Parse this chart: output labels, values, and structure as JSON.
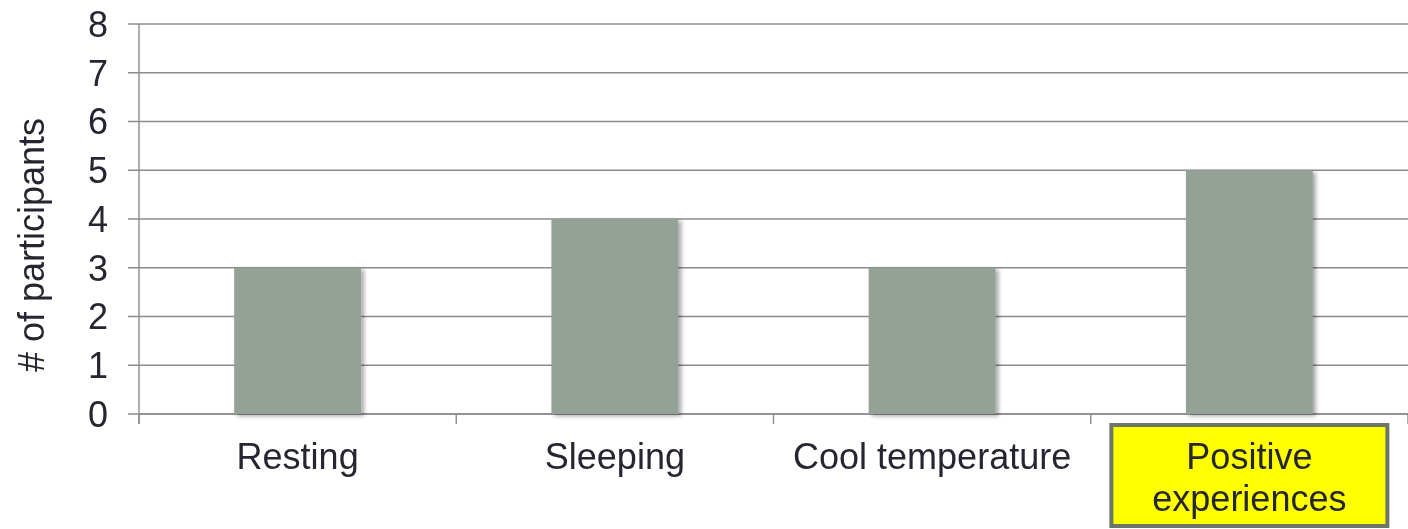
{
  "chart_data": {
    "type": "bar",
    "ylabel": "# of participants",
    "categories": [
      "Resting",
      "Sleeping",
      "Cool temperature",
      "Positive experiences"
    ],
    "values": [
      3,
      4,
      3,
      5
    ],
    "color": "#93a197",
    "ylim": [
      0,
      8
    ],
    "yticks": [
      0,
      1,
      2,
      3,
      4,
      5,
      6,
      7,
      8
    ],
    "grid": "y"
  }
}
